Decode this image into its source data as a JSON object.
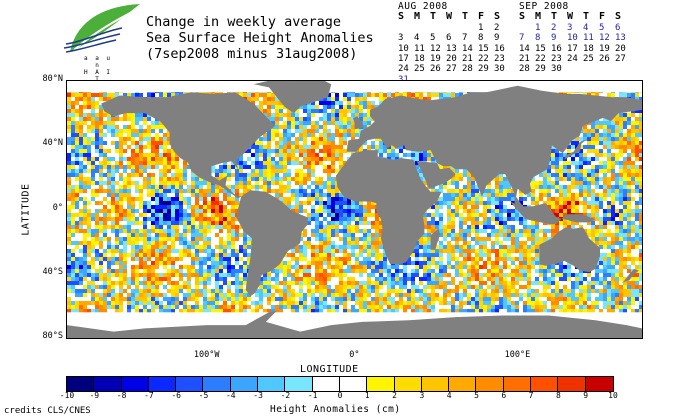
{
  "title": {
    "line1": "Change in weekly average",
    "line2": "Sea Surface Height Anomalies",
    "line3": "(7sep2008 minus 31aug2008)"
  },
  "logo": {
    "text_top": "a a u n",
    "text_bottom": "H A I T"
  },
  "calendars": [
    {
      "caption": "AUG 2008",
      "weekdays": [
        "S",
        "M",
        "T",
        "W",
        "T",
        "F",
        "S"
      ],
      "weeks": [
        [
          "",
          "",
          "",
          "",
          "",
          "1",
          "2"
        ],
        [
          "3",
          "4",
          "5",
          "6",
          "7",
          "8",
          "9"
        ],
        [
          "10",
          "11",
          "12",
          "13",
          "14",
          "15",
          "16"
        ],
        [
          "17",
          "18",
          "19",
          "20",
          "21",
          "22",
          "23"
        ],
        [
          "24",
          "25",
          "26",
          "27",
          "28",
          "29",
          "30"
        ],
        [
          "31",
          "",
          "",
          "",
          "",
          "",
          ""
        ]
      ],
      "highlight": [
        "31"
      ]
    },
    {
      "caption": "SEP 2008",
      "weekdays": [
        "S",
        "M",
        "T",
        "W",
        "T",
        "F",
        "S"
      ],
      "weeks": [
        [
          "",
          "1",
          "2",
          "3",
          "4",
          "5",
          "6"
        ],
        [
          "7",
          "8",
          "9",
          "10",
          "11",
          "12",
          "13"
        ],
        [
          "14",
          "15",
          "16",
          "17",
          "18",
          "19",
          "20"
        ],
        [
          "21",
          "22",
          "23",
          "24",
          "25",
          "26",
          "27"
        ],
        [
          "28",
          "29",
          "30",
          "",
          "",
          "",
          ""
        ]
      ],
      "highlight": [
        "1",
        "2",
        "3",
        "4",
        "5",
        "6",
        "7",
        "8",
        "9",
        "10",
        "11",
        "12",
        "13"
      ]
    }
  ],
  "map": {
    "y_axis_title": "LATITUDE",
    "x_axis_title": "LONGITUDE",
    "lat_ticks": [
      {
        "label": "80°N",
        "value": 80
      },
      {
        "label": "40°N",
        "value": 40
      },
      {
        "label": "0°",
        "value": 0
      },
      {
        "label": "40°S",
        "value": -40
      },
      {
        "label": "80°S",
        "value": -80
      }
    ],
    "lon_ticks": [
      {
        "label": "100°W",
        "value": -100
      },
      {
        "label": "0°",
        "value": 0
      },
      {
        "label": "100°E",
        "value": 100
      }
    ],
    "lon_range": [
      -190,
      180
    ],
    "lat_range": [
      -80,
      80
    ],
    "land_color": "#808080",
    "ice_color": "#ffffff"
  },
  "colorbar": {
    "label": "Height Anomalies (cm)",
    "ticks": [
      "-10",
      "-9",
      "-8",
      "-7",
      "-6",
      "-5",
      "-4",
      "-3",
      "-2",
      "-1",
      "0",
      "1",
      "2",
      "3",
      "4",
      "5",
      "6",
      "7",
      "8",
      "9",
      "10"
    ],
    "colors": [
      "#00007f",
      "#0000b4",
      "#0000e6",
      "#0a28ff",
      "#1e50ff",
      "#2d7dff",
      "#3ca5ff",
      "#50c8ff",
      "#78e6ff",
      "#ffffff",
      "#ffffff",
      "#fff500",
      "#ffdc00",
      "#ffc300",
      "#ffaa00",
      "#ff8c00",
      "#ff6e00",
      "#ff5000",
      "#f03200",
      "#c80000"
    ]
  },
  "credits": "credits CLS/CNES"
}
